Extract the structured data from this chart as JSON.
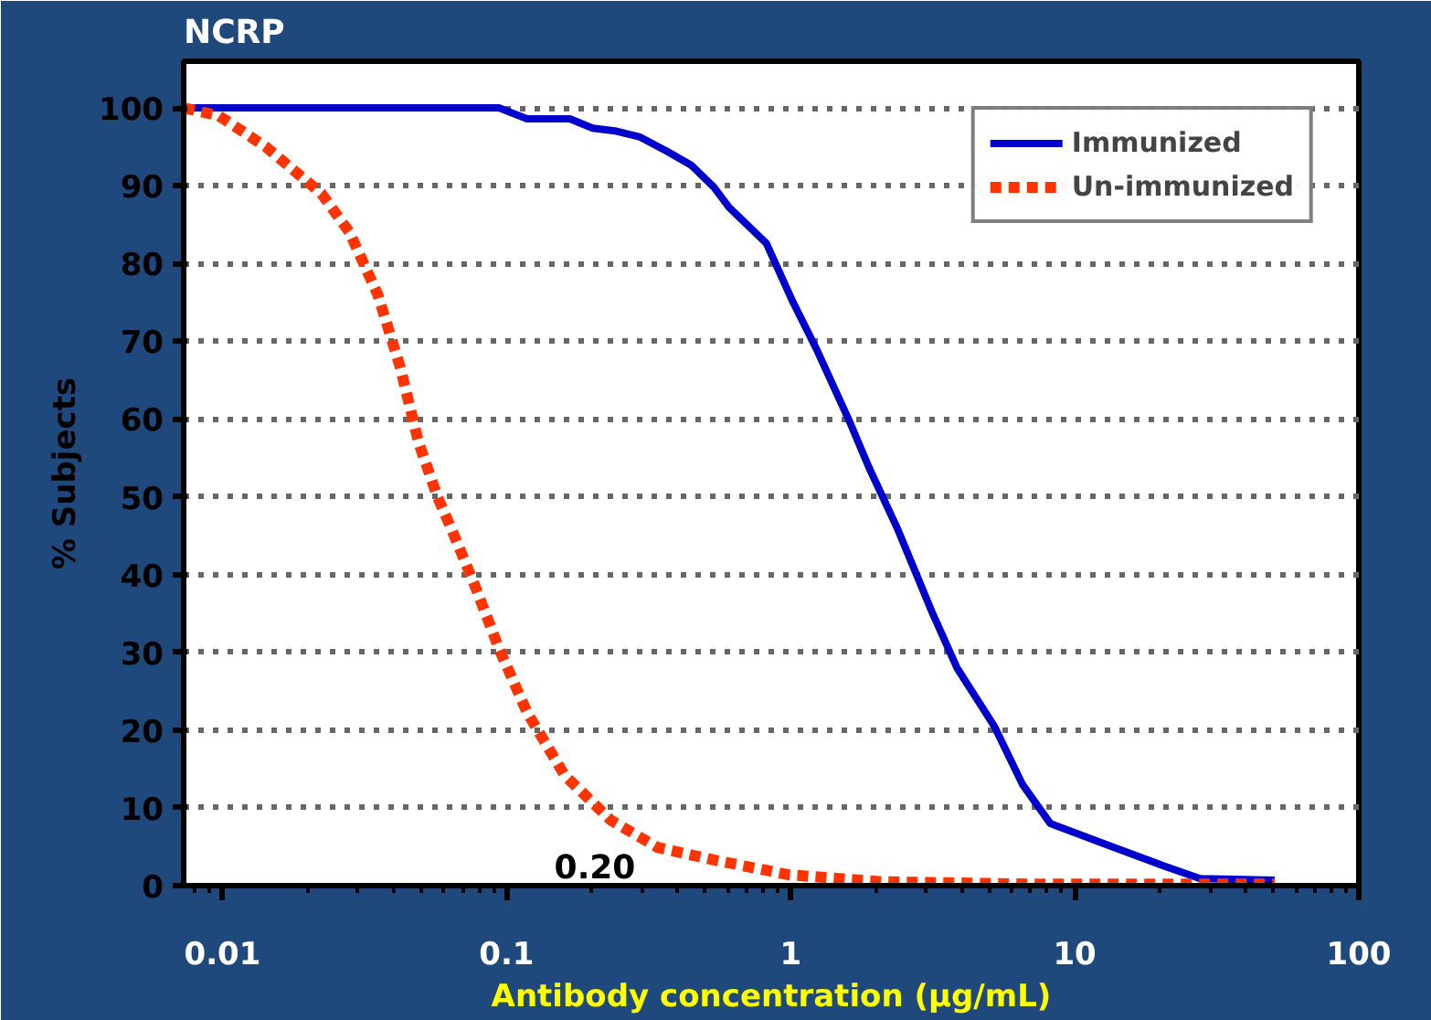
{
  "chart_data": {
    "type": "line",
    "title": "NCRP",
    "xlabel": "Antibody concentration (µg/mL)",
    "ylabel": "% Subjects",
    "log": "x",
    "grid": "y",
    "legend": "top right",
    "xlim": [
      0.0073,
      100
    ],
    "xticks": [
      0.01,
      0.1,
      1,
      10,
      100
    ],
    "ylim": [
      0,
      106
    ],
    "yticks": [
      0,
      10,
      20,
      30,
      40,
      50,
      60,
      70,
      80,
      90,
      100
    ],
    "annotations": [
      "0.20"
    ],
    "series": [
      {
        "name": "Immunized",
        "color": "#0000cc",
        "line_style": "solid",
        "x": [
          0.0073,
          0.094,
          0.118,
          0.167,
          0.201,
          0.244,
          0.293,
          0.368,
          0.448,
          0.537,
          0.607,
          0.821,
          1.02,
          1.24,
          1.62,
          1.89,
          2.37,
          3.16,
          3.85,
          5.21,
          6.55,
          8.2,
          12.9,
          20.4,
          27.6,
          50.6
        ],
        "values": [
          100,
          100,
          98.6,
          98.6,
          97.4,
          97,
          96.3,
          94.4,
          92.6,
          89.8,
          87.2,
          82.6,
          75,
          68.8,
          59.5,
          53.7,
          46,
          35,
          28,
          20.5,
          13,
          8,
          5.3,
          2.6,
          0.9,
          0.7
        ]
      },
      {
        "name": "Un-immunized",
        "color": "#ff3300",
        "line_style": "dotted",
        "x": [
          0.0073,
          0.0097,
          0.0142,
          0.0223,
          0.028,
          0.0352,
          0.0422,
          0.049,
          0.0571,
          0.0644,
          0.0773,
          0.094,
          0.118,
          0.16,
          0.233,
          0.341,
          0.537,
          0.985,
          2.1,
          7.06,
          50.6
        ],
        "values": [
          100,
          99,
          95,
          89,
          84,
          76,
          66.7,
          57,
          50,
          45.6,
          38.6,
          30.5,
          22.3,
          14.2,
          8.4,
          4.9,
          3.3,
          1.4,
          0.5,
          0.2,
          0.2
        ]
      }
    ]
  }
}
